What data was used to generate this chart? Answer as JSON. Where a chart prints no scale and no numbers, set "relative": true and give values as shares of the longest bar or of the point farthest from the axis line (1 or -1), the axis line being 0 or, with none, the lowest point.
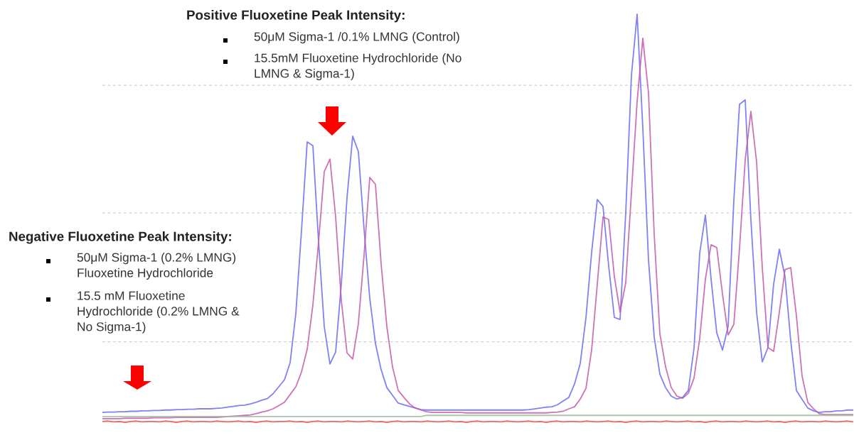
{
  "chart_data": {
    "type": "line",
    "relative": true,
    "categories": [
      null,
      null,
      null,
      null,
      null,
      null,
      null,
      null,
      null,
      null,
      null,
      null,
      null,
      null,
      null,
      null,
      null,
      null,
      null,
      null,
      null,
      null,
      null,
      null,
      null,
      null,
      null,
      null,
      null,
      null,
      null,
      null,
      null,
      null,
      null,
      null,
      null,
      null,
      null,
      null,
      null,
      null,
      null,
      null,
      null,
      null,
      null,
      null,
      null,
      null,
      null,
      null,
      null,
      null,
      null,
      null,
      null,
      null,
      null,
      null,
      null,
      null,
      null,
      null,
      null,
      null,
      null,
      null,
      null,
      null,
      null,
      null,
      null,
      null,
      null,
      null,
      null,
      null,
      null,
      null,
      null,
      null,
      null,
      null,
      null,
      null,
      null,
      null,
      null,
      null,
      null,
      null,
      null,
      null,
      null,
      null,
      null,
      null,
      null,
      null,
      null,
      null,
      null,
      null,
      null,
      null,
      null,
      null,
      null,
      null,
      null,
      null,
      null,
      null,
      null,
      null,
      null,
      null,
      null,
      null,
      null,
      null,
      null,
      null,
      null,
      null,
      null,
      null,
      null,
      null,
      null,
      null,
      null
    ],
    "series": [
      {
        "color": "#6b6bf2",
        "values": [
          0.024,
          0.025,
          0.025,
          0.026,
          0.026,
          0.027,
          0.027,
          0.028,
          0.028,
          0.029,
          0.029,
          0.03,
          0.03,
          0.031,
          0.031,
          0.032,
          0.032,
          0.033,
          0.033,
          0.033,
          0.034,
          0.035,
          0.037,
          0.039,
          0.041,
          0.042,
          0.045,
          0.049,
          0.054,
          0.058,
          0.07,
          0.087,
          0.104,
          0.146,
          0.266,
          0.47,
          0.687,
          0.678,
          0.443,
          0.235,
          0.143,
          0.172,
          0.339,
          0.55,
          0.701,
          0.663,
          0.473,
          0.304,
          0.193,
          0.129,
          0.085,
          0.066,
          0.047,
          0.043,
          0.039,
          0.035,
          0.031,
          0.03,
          0.03,
          0.03,
          0.03,
          0.03,
          0.03,
          0.03,
          0.03,
          0.03,
          0.03,
          0.03,
          0.03,
          0.03,
          0.03,
          0.03,
          0.03,
          0.03,
          0.03,
          0.031,
          0.033,
          0.035,
          0.037,
          0.038,
          0.043,
          0.052,
          0.061,
          0.094,
          0.144,
          0.256,
          0.416,
          0.546,
          0.529,
          0.383,
          0.257,
          0.252,
          0.513,
          0.85,
          1,
          0.722,
          0.398,
          0.209,
          0.118,
          0.085,
          0.064,
          0.057,
          0.061,
          0.078,
          0.181,
          0.414,
          0.508,
          0.351,
          0.219,
          0.177,
          0.235,
          0.543,
          0.779,
          0.79,
          0.496,
          0.27,
          0.148,
          0.183,
          0.339,
          0.424,
          0.357,
          0.2,
          0.078,
          0.056,
          0.035,
          0.028,
          0.024,
          0.026,
          0.026,
          0.028,
          0.028,
          0.03,
          0.03
        ]
      },
      {
        "color": "#c45aa8",
        "values": [
          0.009,
          0.009,
          0.009,
          0.009,
          0.01,
          0.01,
          0.01,
          0.01,
          0.01,
          0.011,
          0.011,
          0.011,
          0.011,
          0.012,
          0.012,
          0.012,
          0.012,
          0.012,
          0.012,
          0.012,
          0.012,
          0.013,
          0.014,
          0.015,
          0.016,
          0.017,
          0.018,
          0.021,
          0.025,
          0.028,
          0.033,
          0.041,
          0.049,
          0.068,
          0.087,
          0.123,
          0.179,
          0.287,
          0.442,
          0.614,
          0.645,
          0.504,
          0.299,
          0.17,
          0.155,
          0.242,
          0.41,
          0.6,
          0.583,
          0.388,
          0.235,
          0.136,
          0.078,
          0.061,
          0.045,
          0.035,
          0.03,
          0.026,
          0.024,
          0.024,
          0.024,
          0.024,
          0.024,
          0.024,
          0.023,
          0.023,
          0.023,
          0.023,
          0.023,
          0.023,
          0.023,
          0.023,
          0.023,
          0.023,
          0.023,
          0.023,
          0.023,
          0.023,
          0.023,
          0.024,
          0.025,
          0.027,
          0.033,
          0.038,
          0.057,
          0.083,
          0.177,
          0.339,
          0.503,
          0.497,
          0.357,
          0.27,
          0.342,
          0.562,
          0.786,
          0.941,
          0.807,
          0.461,
          0.217,
          0.136,
          0.085,
          0.064,
          0.059,
          0.071,
          0.108,
          0.205,
          0.351,
          0.435,
          0.428,
          0.315,
          0.214,
          0.24,
          0.426,
          0.643,
          0.762,
          0.638,
          0.379,
          0.183,
          0.174,
          0.27,
          0.374,
          0.379,
          0.261,
          0.113,
          0.049,
          0.033,
          0.021,
          0.019,
          0.019,
          0.019,
          0.019,
          0.019,
          0.019
        ]
      },
      {
        "color": "#9cb89c",
        "values": [
          0.014,
          0.014,
          0.014,
          0.014,
          0.014,
          0.014,
          0.014,
          0.014,
          0.014,
          0.014,
          0.014,
          0.014,
          0.014,
          0.014,
          0.014,
          0.014,
          0.014,
          0.014,
          0.014,
          0.014,
          0.014,
          0.014,
          0.014,
          0.014,
          0.014,
          0.014,
          0.014,
          0.014,
          0.014,
          0.014,
          0.014,
          0.014,
          0.014,
          0.014,
          0.014,
          0.014,
          0.014,
          0.014,
          0.014,
          0.014,
          0.014,
          0.014,
          0.014,
          0.014,
          0.014,
          0.014,
          0.014,
          0.014,
          0.014,
          0.014,
          0.014,
          0.014,
          0.014,
          0.014,
          0.014,
          0.014,
          0.014,
          0.017,
          0.017,
          0.017,
          0.017,
          0.017,
          0.017,
          0.017,
          0.017,
          0.017,
          0.017,
          0.017,
          0.017,
          0.017,
          0.017,
          0.017,
          0.017,
          0.017,
          0.017,
          0.017,
          0.017,
          0.017,
          0.017,
          0.017,
          0.017,
          0.017,
          0.017,
          0.017,
          0.017,
          0.017,
          0.017,
          0.017,
          0.017,
          0.017,
          0.017,
          0.017,
          0.017,
          0.017,
          0.017,
          0.017,
          0.017,
          0.017,
          0.017,
          0.017,
          0.017,
          0.017,
          0.017,
          0.017,
          0.017,
          0.017,
          0.017,
          0.017,
          0.017,
          0.017,
          0.017,
          0.017,
          0.017,
          0.017,
          0.017,
          0.017,
          0.017,
          0.017,
          0.017,
          0.017,
          0.017,
          0.017,
          0.017,
          0.017,
          0.017,
          0.017,
          0.017,
          0.017,
          0.017,
          0.017,
          0.017,
          0.017,
          0.017
        ]
      },
      {
        "color": "#f04848",
        "values": [
          0.002,
          0.003,
          0.001,
          0.002,
          0.0,
          0.002,
          0.003,
          0.001,
          0.002,
          0.002,
          0.001,
          0.003,
          0.002,
          0.0,
          0.002,
          0.003,
          0.001,
          0.002,
          0.002,
          0.001,
          0.003,
          0.002,
          0.001,
          0.002,
          0.003,
          0.001,
          0.002,
          0.0,
          0.002,
          0.003,
          0.001,
          0.002,
          0.002,
          0.003,
          0.001,
          0.002,
          0.0,
          0.002,
          0.003,
          0.001,
          0.002,
          0.002,
          0.001,
          0.003,
          0.002,
          0.001,
          0.002,
          0.003,
          0.001,
          0.002,
          0.0,
          0.002,
          0.003,
          0.001,
          0.002,
          0.002,
          0.001,
          0.003,
          0.002,
          0.001,
          0.002,
          0.003,
          0.001,
          0.002,
          0.0,
          0.002,
          0.003,
          0.001,
          0.002,
          0.002,
          0.001,
          0.003,
          0.002,
          0.001,
          0.002,
          0.003,
          0.001,
          0.002,
          0.0,
          0.002,
          0.003,
          0.001,
          0.002,
          0.002,
          0.001,
          0.003,
          0.002,
          0.001,
          0.002,
          0.003,
          0.001,
          0.002,
          0.0,
          0.002,
          0.003,
          0.001,
          0.002,
          0.002,
          0.001,
          0.003,
          0.002,
          0.001,
          0.002,
          0.003,
          0.001,
          0.002,
          0.0,
          0.002,
          0.003,
          0.001,
          0.002,
          0.002,
          0.001,
          0.003,
          0.002,
          0.001,
          0.002,
          0.003,
          0.001,
          0.002,
          0.0,
          0.002,
          0.003,
          0.001,
          0.002,
          0.002,
          0.001,
          0.003,
          0.002,
          0.001,
          0.002,
          0.003,
          0.001
        ]
      }
    ],
    "ref_lines": [
      {
        "axis": "y",
        "value": 0.826,
        "color": "#d0d0d0",
        "line_style": "dashed"
      },
      {
        "axis": "y",
        "value": 0.513,
        "color": "#d0d0d0",
        "line_style": "dashed"
      },
      {
        "axis": "y",
        "value": 0.197,
        "color": "#d0d0d0",
        "line_style": "dashed"
      }
    ],
    "annotations": [
      "Positive Fluoxetine Peak Intensity:",
      "50μM Sigma-1 /0.1% LMNG (Control)",
      "15.5mM Fluoxetine Hydrochloride (No\nLMNG & Sigma-1)",
      "Negative Fluoxetine Peak Intensity:",
      "50μM Sigma-1 (0.2% LMNG)\nFluoxetine Hydrochloride",
      "15.5 mM Fluoxetine\nHydrochloride (0.2% LMNG &\nNo Sigma-1)"
    ],
    "legend": false
  }
}
